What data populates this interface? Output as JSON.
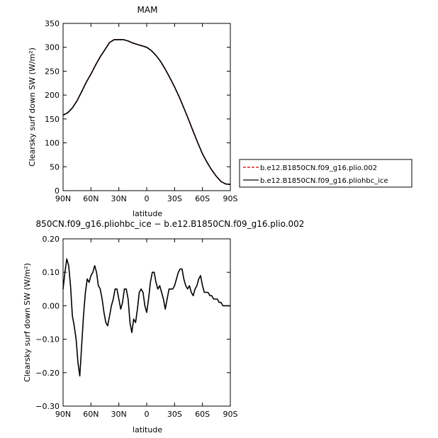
{
  "chart_data": [
    {
      "type": "line",
      "title": "MAM",
      "xlabel": "latitude",
      "ylabel": "Clearsky surf down SW (W/m²)",
      "x_ticks": [
        "90N",
        "60N",
        "30N",
        "0",
        "30S",
        "60S",
        "90S"
      ],
      "y_ticks": [
        "0",
        "50",
        "100",
        "150",
        "200",
        "250",
        "300",
        "350"
      ],
      "xlim": [
        90,
        -90
      ],
      "ylim": [
        0,
        350
      ],
      "legend_placement": "right",
      "series": [
        {
          "name": "b.e12.B1850CN.f09_g16.plio.002",
          "color": "#cc0000",
          "dash": "dashed",
          "x": [
            90,
            85,
            80,
            75,
            70,
            65,
            60,
            55,
            50,
            45,
            40,
            35,
            30,
            25,
            20,
            15,
            10,
            5,
            0,
            -5,
            -10,
            -15,
            -20,
            -25,
            -30,
            -35,
            -40,
            -45,
            -50,
            -55,
            -60,
            -65,
            -70,
            -75,
            -80,
            -85,
            -90
          ],
          "y": [
            158,
            163,
            173,
            188,
            207,
            227,
            244,
            263,
            280,
            295,
            310,
            316,
            316,
            316,
            313,
            309,
            306,
            303,
            300,
            293,
            283,
            270,
            254,
            236,
            217,
            196,
            173,
            149,
            124,
            100,
            77,
            59,
            43,
            30,
            19,
            14,
            13
          ]
        },
        {
          "name": "b.e12.B1850CN.f09_g16.pliohbc_ice",
          "color": "#000000",
          "dash": "solid",
          "x": [
            90,
            85,
            80,
            75,
            70,
            65,
            60,
            55,
            50,
            45,
            40,
            35,
            30,
            25,
            20,
            15,
            10,
            5,
            0,
            -5,
            -10,
            -15,
            -20,
            -25,
            -30,
            -35,
            -40,
            -45,
            -50,
            -55,
            -60,
            -65,
            -70,
            -75,
            -80,
            -85,
            -90
          ],
          "y": [
            158,
            163,
            173,
            188,
            207,
            227,
            244,
            263,
            280,
            295,
            310,
            316,
            316,
            316,
            313,
            309,
            306,
            303,
            300,
            293,
            283,
            270,
            254,
            236,
            217,
            196,
            173,
            149,
            124,
            100,
            77,
            59,
            43,
            30,
            19,
            14,
            13
          ]
        }
      ]
    },
    {
      "type": "line",
      "title": "850CN.f09_g16.pliohbc_ice − b.e12.B1850CN.f09_g16.plio.002",
      "xlabel": "latitude",
      "ylabel": "Clearsky surf down SW (W/m²)",
      "x_ticks": [
        "90N",
        "60N",
        "30N",
        "0",
        "30S",
        "60S",
        "90S"
      ],
      "y_ticks": [
        "0.20",
        "0.10",
        "0.00",
        "−0.10",
        "−0.20",
        "−0.30"
      ],
      "xlim": [
        90,
        -90
      ],
      "ylim": [
        -0.3,
        0.2
      ],
      "series": [
        {
          "color": "#000000",
          "dash": "solid",
          "x": [
            90,
            88,
            86,
            84,
            82,
            80,
            78,
            76,
            74,
            72,
            70,
            68,
            66,
            64,
            62,
            60,
            58,
            56,
            54,
            52,
            50,
            48,
            46,
            44,
            42,
            40,
            38,
            36,
            34,
            32,
            30,
            28,
            26,
            24,
            22,
            20,
            18,
            16,
            14,
            12,
            10,
            8,
            6,
            4,
            2,
            0,
            -2,
            -4,
            -6,
            -8,
            -10,
            -12,
            -14,
            -16,
            -18,
            -20,
            -22,
            -24,
            -26,
            -28,
            -30,
            -32,
            -34,
            -36,
            -38,
            -40,
            -42,
            -44,
            -46,
            -48,
            -50,
            -52,
            -54,
            -56,
            -58,
            -60,
            -62,
            -64,
            -66,
            -68,
            -70,
            -72,
            -74,
            -76,
            -78,
            -80,
            -82,
            -84,
            -86,
            -88,
            -90
          ],
          "y": [
            0.05,
            0.1,
            0.14,
            0.12,
            0.06,
            -0.03,
            -0.06,
            -0.1,
            -0.17,
            -0.21,
            -0.12,
            -0.03,
            0.04,
            0.08,
            0.07,
            0.09,
            0.1,
            0.12,
            0.1,
            0.06,
            0.05,
            0.02,
            -0.02,
            -0.05,
            -0.06,
            -0.03,
            0.0,
            0.02,
            0.05,
            0.05,
            0.02,
            -0.01,
            0.01,
            0.05,
            0.05,
            0.02,
            -0.05,
            -0.08,
            -0.04,
            -0.05,
            -0.01,
            0.04,
            0.05,
            0.04,
            0.0,
            -0.02,
            0.02,
            0.07,
            0.1,
            0.1,
            0.07,
            0.05,
            0.06,
            0.04,
            0.02,
            -0.01,
            0.02,
            0.05,
            0.05,
            0.05,
            0.06,
            0.08,
            0.1,
            0.11,
            0.11,
            0.08,
            0.06,
            0.05,
            0.06,
            0.04,
            0.03,
            0.05,
            0.06,
            0.08,
            0.09,
            0.06,
            0.04,
            0.04,
            0.04,
            0.03,
            0.03,
            0.02,
            0.02,
            0.02,
            0.01,
            0.01,
            0.0,
            0.0,
            0.0,
            0.0,
            0.0
          ]
        }
      ]
    }
  ]
}
